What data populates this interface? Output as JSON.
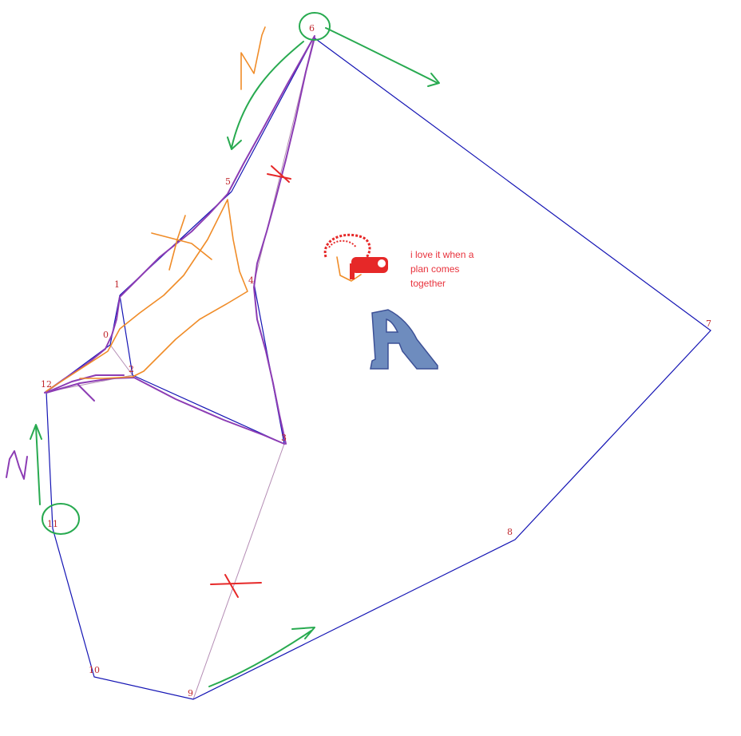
{
  "colors": {
    "polygon": "#1414b4",
    "diagonal": "#b48cb4",
    "vertex_label": "#c0282d",
    "purple_trace": "#8c3cb4",
    "orange_trace": "#f08c28",
    "green_marks": "#28aa50",
    "red_marks": "#e62828",
    "note_text": "#e8323c",
    "letter_fill": "#6e8cbe",
    "letter_stroke": "#3c5096"
  },
  "vertices": [
    {
      "label": "0"
    },
    {
      "label": "1"
    },
    {
      "label": "2"
    },
    {
      "label": "3"
    },
    {
      "label": "4"
    },
    {
      "label": "5"
    },
    {
      "label": "6"
    },
    {
      "label": "7"
    },
    {
      "label": "8"
    },
    {
      "label": "9"
    },
    {
      "label": "10"
    },
    {
      "label": "11"
    },
    {
      "label": "12"
    }
  ],
  "note": {
    "lines": [
      "i love it when a",
      "plan comes",
      "together"
    ]
  },
  "icons": {
    "letter_glyph": "blue-letter-a-icon",
    "doodle": "red-cigar-doodle-icon"
  }
}
